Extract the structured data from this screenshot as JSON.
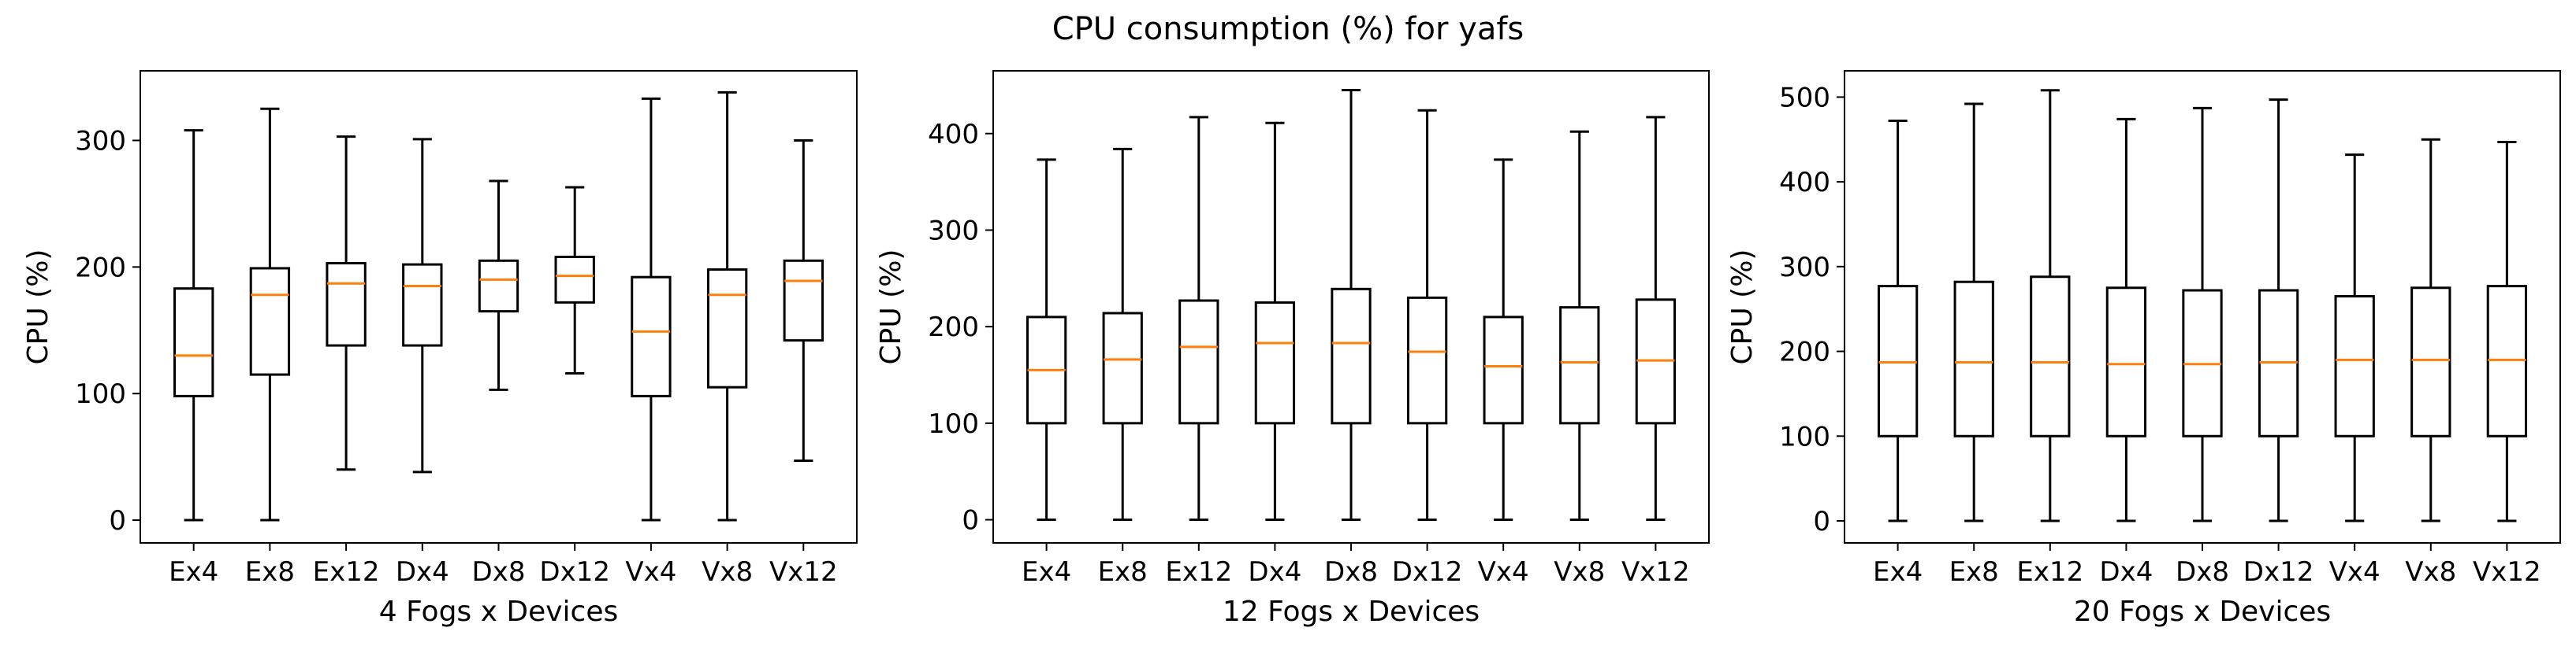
{
  "title": "CPU consumption (%) for yafs",
  "colors": {
    "box": "#000000",
    "median": "#ff7f0e",
    "background": "#ffffff"
  },
  "chart_data": [
    {
      "type": "box",
      "xlabel": "4 Fogs x Devices",
      "ylabel": "CPU (%)",
      "ylim": [
        -18,
        355
      ],
      "yticks": [
        0,
        100,
        200,
        300
      ],
      "categories": [
        "Ex4",
        "Ex8",
        "Ex12",
        "Dx4",
        "Dx8",
        "Dx12",
        "Vx4",
        "Vx8",
        "Vx12"
      ],
      "boxes": [
        {
          "min": 0,
          "q1": 98,
          "median": 130,
          "q3": 183,
          "max": 308
        },
        {
          "min": 0,
          "q1": 115,
          "median": 178,
          "q3": 199,
          "max": 325
        },
        {
          "min": 40,
          "q1": 138,
          "median": 187,
          "q3": 203,
          "max": 303
        },
        {
          "min": 38,
          "q1": 138,
          "median": 185,
          "q3": 202,
          "max": 301
        },
        {
          "min": 103,
          "q1": 165,
          "median": 190,
          "q3": 205,
          "max": 268
        },
        {
          "min": 116,
          "q1": 172,
          "median": 193,
          "q3": 208,
          "max": 263
        },
        {
          "min": 0,
          "q1": 98,
          "median": 149,
          "q3": 192,
          "max": 333
        },
        {
          "min": 0,
          "q1": 105,
          "median": 178,
          "q3": 198,
          "max": 338
        },
        {
          "min": 47,
          "q1": 142,
          "median": 189,
          "q3": 205,
          "max": 300
        }
      ]
    },
    {
      "type": "box",
      "xlabel": "12 Fogs x Devices",
      "ylabel": "CPU (%)",
      "ylim": [
        -24,
        465
      ],
      "yticks": [
        0,
        100,
        200,
        300,
        400
      ],
      "categories": [
        "Ex4",
        "Ex8",
        "Ex12",
        "Dx4",
        "Dx8",
        "Dx12",
        "Vx4",
        "Vx8",
        "Vx12"
      ],
      "boxes": [
        {
          "min": 0,
          "q1": 100,
          "median": 155,
          "q3": 210,
          "max": 373
        },
        {
          "min": 0,
          "q1": 100,
          "median": 166,
          "q3": 214,
          "max": 384
        },
        {
          "min": 0,
          "q1": 100,
          "median": 179,
          "q3": 227,
          "max": 417
        },
        {
          "min": 0,
          "q1": 100,
          "median": 183,
          "q3": 225,
          "max": 411
        },
        {
          "min": 0,
          "q1": 100,
          "median": 183,
          "q3": 239,
          "max": 445
        },
        {
          "min": 0,
          "q1": 100,
          "median": 174,
          "q3": 230,
          "max": 424
        },
        {
          "min": 0,
          "q1": 100,
          "median": 159,
          "q3": 210,
          "max": 373
        },
        {
          "min": 0,
          "q1": 100,
          "median": 163,
          "q3": 220,
          "max": 402
        },
        {
          "min": 0,
          "q1": 100,
          "median": 165,
          "q3": 228,
          "max": 417
        }
      ]
    },
    {
      "type": "box",
      "xlabel": "20 Fogs x Devices",
      "ylabel": "CPU (%)",
      "ylim": [
        -26,
        531
      ],
      "yticks": [
        0,
        100,
        200,
        300,
        400,
        500
      ],
      "categories": [
        "Ex4",
        "Ex8",
        "Ex12",
        "Dx4",
        "Dx8",
        "Dx12",
        "Vx4",
        "Vx8",
        "Vx12"
      ],
      "boxes": [
        {
          "min": 0,
          "q1": 100,
          "median": 187,
          "q3": 277,
          "max": 472
        },
        {
          "min": 0,
          "q1": 100,
          "median": 187,
          "q3": 282,
          "max": 492
        },
        {
          "min": 0,
          "q1": 100,
          "median": 187,
          "q3": 288,
          "max": 508
        },
        {
          "min": 0,
          "q1": 100,
          "median": 185,
          "q3": 275,
          "max": 474
        },
        {
          "min": 0,
          "q1": 100,
          "median": 185,
          "q3": 272,
          "max": 487
        },
        {
          "min": 0,
          "q1": 100,
          "median": 187,
          "q3": 272,
          "max": 497
        },
        {
          "min": 0,
          "q1": 100,
          "median": 190,
          "q3": 265,
          "max": 432
        },
        {
          "min": 0,
          "q1": 100,
          "median": 190,
          "q3": 275,
          "max": 450
        },
        {
          "min": 0,
          "q1": 100,
          "median": 190,
          "q3": 277,
          "max": 447
        }
      ]
    }
  ]
}
